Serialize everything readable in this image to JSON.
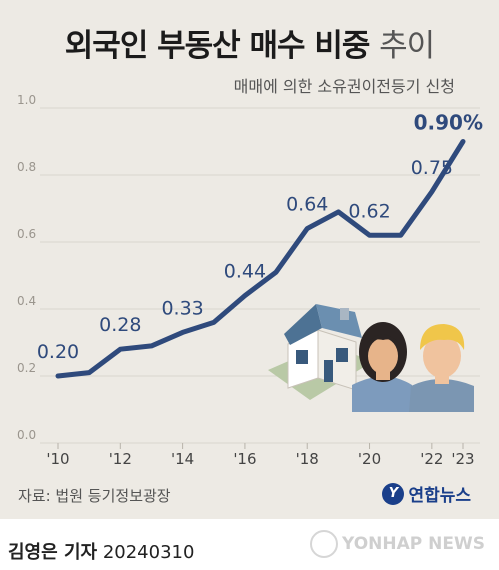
{
  "header": {
    "title_main": "외국인 부동산 매수 비중",
    "title_light": "추이",
    "subtitle": "매매에 의한 소유권이전등기 신청"
  },
  "footer": {
    "source": "자료: 법원 등기정보광장",
    "logo_text": "연합뉴스",
    "byline_name": "김영은 기자",
    "byline_date": "20240310",
    "watermark": "YONHAP NEWS"
  },
  "colors": {
    "line": "#2f4a7c",
    "label": "#2f4a7c",
    "panel": "#edeae4",
    "grid": "#d9d5ce"
  },
  "illustration": {
    "icons": [
      "house-icon",
      "woman-icon",
      "man-icon"
    ]
  },
  "chart_data": {
    "type": "line",
    "title": "외국인 부동산 매수 비중 추이",
    "subtitle": "매매에 의한 소유권이전등기 신청",
    "x": [
      2010,
      2011,
      2012,
      2013,
      2014,
      2015,
      2016,
      2017,
      2018,
      2019,
      2020,
      2021,
      2022,
      2023
    ],
    "series": [
      {
        "values": [
          0.2,
          0.21,
          0.28,
          0.29,
          0.33,
          0.36,
          0.44,
          0.51,
          0.64,
          0.69,
          0.62,
          0.62,
          0.75,
          0.9
        ]
      }
    ],
    "data_labels": [
      {
        "x": 2010,
        "text": "0.20"
      },
      {
        "x": 2012,
        "text": "0.28"
      },
      {
        "x": 2014,
        "text": "0.33"
      },
      {
        "x": 2016,
        "text": "0.44"
      },
      {
        "x": 2018,
        "text": "0.64"
      },
      {
        "x": 2020,
        "text": "0.62"
      },
      {
        "x": 2022,
        "text": "0.75"
      },
      {
        "x": 2023,
        "text": "0.90%"
      }
    ],
    "xticks": [
      {
        "x": 2010,
        "label": "'10"
      },
      {
        "x": 2012,
        "label": "'12"
      },
      {
        "x": 2014,
        "label": "'14"
      },
      {
        "x": 2016,
        "label": "'16"
      },
      {
        "x": 2018,
        "label": "'18"
      },
      {
        "x": 2020,
        "label": "'20"
      },
      {
        "x": 2022,
        "label": "'22"
      },
      {
        "x": 2023,
        "label": "'23"
      }
    ],
    "yticks": [
      {
        "v": 0.0,
        "label": "0.0"
      },
      {
        "v": 0.2,
        "label": "0.2"
      },
      {
        "v": 0.4,
        "label": "0.4"
      },
      {
        "v": 0.6,
        "label": "0.6"
      },
      {
        "v": 0.8,
        "label": "0.8"
      },
      {
        "v": 1.0,
        "label": "1.0"
      }
    ],
    "ylim": [
      0,
      1.0
    ],
    "xlim": [
      2010,
      2023
    ],
    "grid": true,
    "unit": "%"
  }
}
